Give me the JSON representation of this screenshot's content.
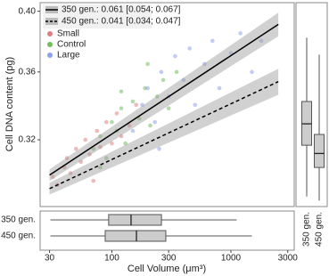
{
  "chart_data": {
    "type": "scatter",
    "xlabel": "Cell Volume (μm³)",
    "ylabel": "Cell DNA content (pg)",
    "xscale": "log",
    "yscale": "log",
    "xlim": [
      25,
      3400
    ],
    "ylim": [
      0.285,
      0.406
    ],
    "xticks": [
      30,
      100,
      300,
      1000,
      3000
    ],
    "yticks": [
      0.32,
      0.36,
      {
        "value": 0.4,
        "label": "0.40"
      }
    ],
    "series": [
      {
        "name": "Small",
        "color": "#e07f80",
        "x": [
          32,
          35,
          40,
          42,
          45,
          50,
          55,
          60,
          65,
          70,
          75,
          80,
          90,
          100,
          110,
          120,
          140,
          160
        ],
        "values": [
          0.3,
          0.296,
          0.305,
          0.31,
          0.302,
          0.315,
          0.308,
          0.32,
          0.312,
          0.298,
          0.325,
          0.316,
          0.33,
          0.318,
          0.335,
          0.322,
          0.328,
          0.34
        ]
      },
      {
        "name": "Control",
        "color": "#74bd5e",
        "x": [
          70,
          80,
          90,
          100,
          110,
          120,
          130,
          150,
          170,
          190,
          210,
          240,
          270,
          300,
          350,
          80,
          120,
          200
        ],
        "values": [
          0.315,
          0.322,
          0.31,
          0.33,
          0.325,
          0.338,
          0.318,
          0.342,
          0.332,
          0.35,
          0.328,
          0.345,
          0.355,
          0.338,
          0.36,
          0.305,
          0.348,
          0.365
        ]
      },
      {
        "name": "Large",
        "color": "#8ea2ec",
        "x": [
          150,
          180,
          200,
          230,
          260,
          300,
          340,
          400,
          450,
          500,
          600,
          700,
          800,
          1000,
          1200,
          1500,
          1800,
          250
        ],
        "values": [
          0.325,
          0.34,
          0.35,
          0.33,
          0.36,
          0.345,
          0.37,
          0.355,
          0.375,
          0.34,
          0.365,
          0.38,
          0.35,
          0.372,
          0.385,
          0.36,
          0.38,
          0.315
        ]
      }
    ],
    "fits": [
      {
        "name": "350 gen.: 0.061 [0.054; 0.067]",
        "color": "#000000",
        "dash": false,
        "x": [
          30,
          2500
        ],
        "values": [
          0.301,
          0.391
        ],
        "lower": [
          0.298,
          0.383
        ],
        "upper": [
          0.304,
          0.399
        ]
      },
      {
        "name": "450 gen.: 0.041 [0.034; 0.047]",
        "color": "#000000",
        "dash": true,
        "x": [
          30,
          2500
        ],
        "values": [
          0.294,
          0.354
        ],
        "lower": [
          0.291,
          0.346
        ],
        "upper": [
          0.297,
          0.362
        ]
      }
    ],
    "box_x": [
      {
        "name": "350 gen.",
        "low": 30.5,
        "q1": 94,
        "median": 145,
        "q3": 261,
        "high": 1117
      },
      {
        "name": "450 gen.",
        "low": 30.5,
        "q1": 88,
        "median": 161,
        "q3": 284,
        "high": 1500
      }
    ],
    "box_y": [
      {
        "name": "350 gen.",
        "low": 0.29,
        "q1": 0.317,
        "median": 0.329,
        "q3": 0.342,
        "high": 0.382
      },
      {
        "name": "450 gen.",
        "low": 0.288,
        "q1": 0.305,
        "median": 0.3125,
        "q3": 0.323,
        "high": 0.371
      }
    ]
  }
}
